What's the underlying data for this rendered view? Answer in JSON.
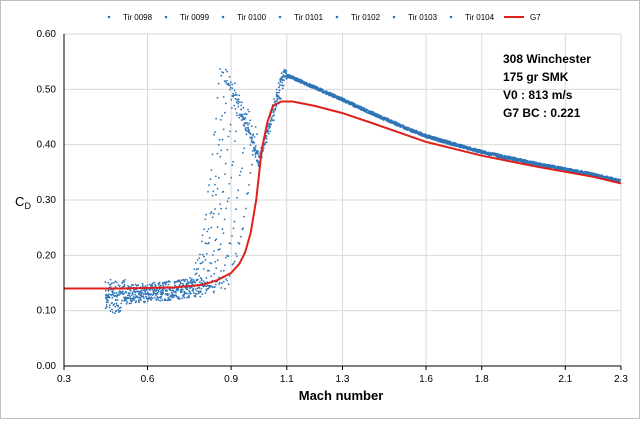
{
  "chart_data": {
    "type": "scatter",
    "title": "",
    "xlabel": "Mach number",
    "ylabel": "Cₓ",
    "ylabel_main": "C",
    "ylabel_sub": "D",
    "xlim": [
      0.3,
      2.3
    ],
    "ylim": [
      0.0,
      0.6
    ],
    "xticks": [
      "0.3",
      "0.6",
      "0.9",
      "1.1",
      "1.3",
      "1.6",
      "1.8",
      "2.1",
      "2.3"
    ],
    "xtick_values": [
      0.3,
      0.6,
      0.9,
      1.1,
      1.3,
      1.6,
      1.8,
      2.1,
      2.3
    ],
    "yticks": [
      "0.00",
      "0.10",
      "0.20",
      "0.30",
      "0.40",
      "0.50",
      "0.60"
    ],
    "ytick_values": [
      0.0,
      0.1,
      0.2,
      0.3,
      0.4,
      0.5,
      0.6
    ],
    "grid": true,
    "legend_position": "top",
    "annotation": [
      "308 Winchester",
      "175 gr SMK",
      "V0 : 813 m/s",
      "G7 BC : 0.221"
    ],
    "colors": {
      "series": "#2e75b6",
      "g7": "#e0201b",
      "grid": "#d9d9d9"
    },
    "series": [
      {
        "name": "Tir 0098",
        "rise_start": 0.74,
        "peak_x": 0.86,
        "peak_y": 0.54
      },
      {
        "name": "Tir 0099",
        "rise_start": 0.75,
        "peak_x": 0.88,
        "peak_y": 0.53
      },
      {
        "name": "Tir 0100",
        "rise_start": 0.76,
        "peak_x": 0.89,
        "peak_y": 0.52
      },
      {
        "name": "Tir 0101",
        "rise_start": 0.78,
        "peak_x": 0.91,
        "peak_y": 0.51
      },
      {
        "name": "Tir 0102",
        "rise_start": 0.8,
        "peak_x": 0.93,
        "peak_y": 0.49
      },
      {
        "name": "Tir 0103",
        "rise_start": 0.83,
        "peak_x": 0.96,
        "peak_y": 0.46
      },
      {
        "name": "Tir 0104",
        "rise_start": 0.86,
        "peak_x": 0.99,
        "peak_y": 0.43
      }
    ],
    "g7": {
      "name": "G7",
      "x": [
        0.3,
        0.5,
        0.7,
        0.8,
        0.85,
        0.9,
        0.93,
        0.95,
        0.97,
        0.99,
        1.01,
        1.03,
        1.05,
        1.08,
        1.12,
        1.2,
        1.3,
        1.4,
        1.6,
        1.8,
        2.0,
        2.2,
        2.3
      ],
      "y": [
        0.14,
        0.14,
        0.142,
        0.147,
        0.155,
        0.168,
        0.185,
        0.205,
        0.24,
        0.3,
        0.39,
        0.44,
        0.47,
        0.478,
        0.478,
        0.47,
        0.457,
        0.44,
        0.405,
        0.38,
        0.36,
        0.342,
        0.33
      ]
    }
  }
}
